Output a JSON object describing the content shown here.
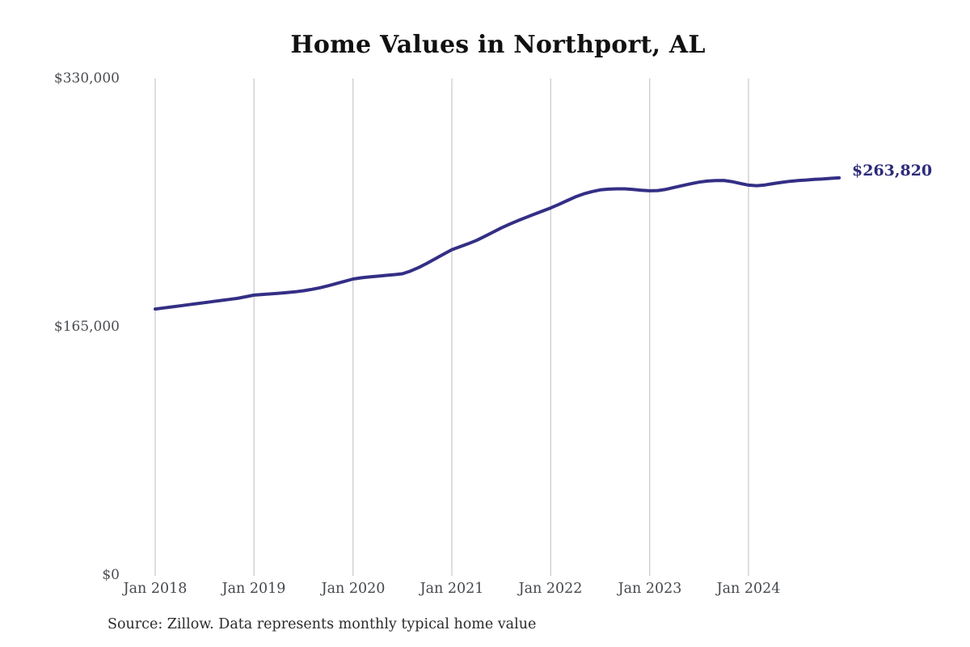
{
  "header": {
    "title": "Home Values in Northport, AL"
  },
  "footer": {
    "source_note": "Source: Zillow. Data represents monthly typical home value"
  },
  "colors": {
    "line": "#332f85",
    "end_label": "#2d2b79",
    "grid": "#cccccc",
    "axis_text": "#4a4d52",
    "title_text": "#111111",
    "source_text": "#2b2b2b",
    "background": "#ffffff"
  },
  "chart_data": {
    "type": "line",
    "title": "Home Values in Northport, AL",
    "xlabel": "",
    "ylabel": "",
    "x_unit": "month",
    "x_start": "Jan 2018",
    "x_end": "Dec 2024",
    "x_tick_labels": [
      "Jan 2018",
      "Jan 2019",
      "Jan 2020",
      "Jan 2021",
      "Jan 2022",
      "Jan 2023",
      "Jan 2024"
    ],
    "y_ticks": [
      0,
      165000,
      330000
    ],
    "y_tick_labels": [
      "$0",
      "$165,000",
      "$330,000"
    ],
    "ylim": [
      0,
      330000
    ],
    "grid": "vertical",
    "legend": "none",
    "series": [
      {
        "name": "Typical home value",
        "final_value": 263820,
        "final_value_label": "$263,820",
        "values": [
          176500,
          177200,
          177900,
          178600,
          179400,
          180100,
          180800,
          181500,
          182200,
          182900,
          183600,
          184700,
          185800,
          186200,
          186600,
          187000,
          187500,
          188000,
          188700,
          189600,
          190700,
          192000,
          193500,
          195000,
          196500,
          197300,
          197900,
          198400,
          198900,
          199400,
          200000,
          201800,
          204200,
          207000,
          210000,
          213000,
          216000,
          218000,
          220000,
          222200,
          224900,
          227700,
          230500,
          233000,
          235300,
          237500,
          239600,
          241700,
          243800,
          246200,
          248700,
          251200,
          253200,
          254700,
          255800,
          256300,
          256500,
          256500,
          256100,
          255600,
          255200,
          255400,
          256200,
          257500,
          258700,
          259900,
          261000,
          261700,
          262000,
          262100,
          261300,
          260100,
          259000,
          258600,
          259100,
          260000,
          260800,
          261500,
          262000,
          262400,
          262800,
          263100,
          263500,
          263820
        ]
      }
    ]
  }
}
